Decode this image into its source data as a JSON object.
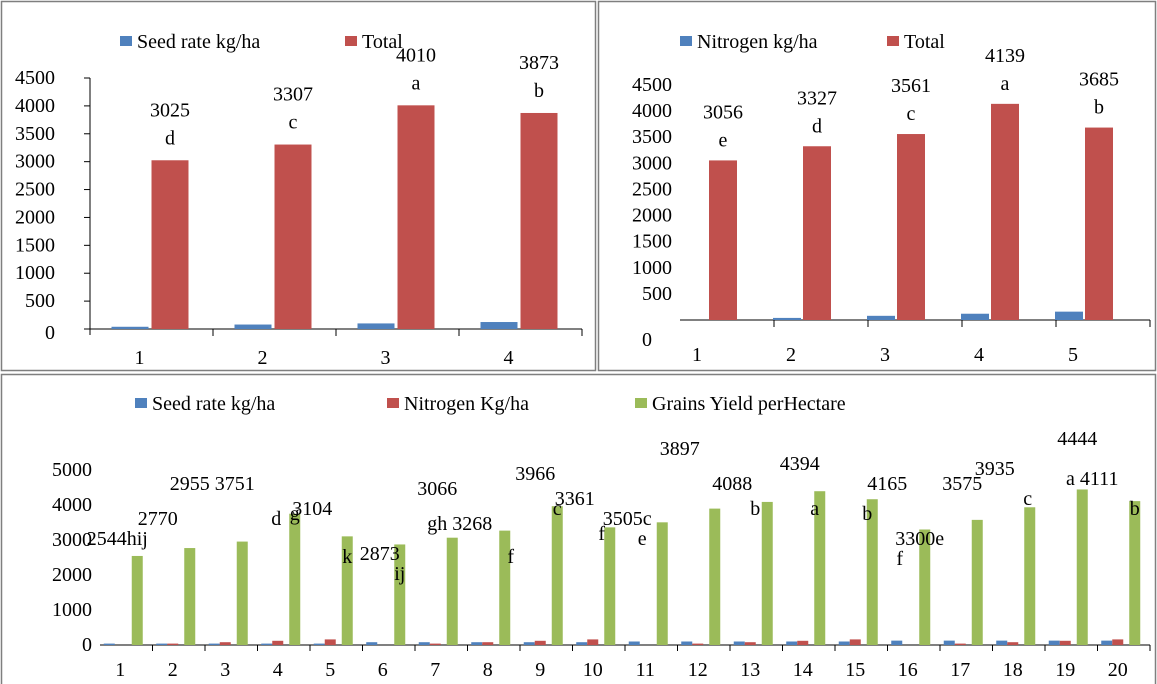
{
  "colors": {
    "blue": "#4F81BD",
    "red": "#C0504D",
    "green": "#9BBB59",
    "border": "#7f7f7f"
  },
  "chart_data": [
    {
      "type": "bar",
      "legend": [
        "Seed rate kg/ha",
        "Total"
      ],
      "legend_position": "top",
      "categories": [
        "1",
        "2",
        "3",
        "4"
      ],
      "series": [
        {
          "name": "Seed rate kg/ha",
          "values": [
            40,
            80,
            100,
            125
          ]
        },
        {
          "name": "Total",
          "values": [
            3025,
            3307,
            4010,
            3873
          ]
        }
      ],
      "value_labels": [
        "3025",
        "3307",
        "4010",
        "3873"
      ],
      "letters": [
        "d",
        "c",
        "a",
        "b"
      ],
      "yticks": [
        "0",
        "500",
        "1000",
        "1500",
        "2000",
        "2500",
        "3000",
        "3500",
        "4000",
        "4500"
      ],
      "ylim": [
        0,
        4500
      ],
      "grid": false
    },
    {
      "type": "bar",
      "legend": [
        "Nitrogen kg/ha",
        "Total"
      ],
      "legend_position": "top",
      "categories": [
        "1",
        "2",
        "3",
        "4",
        "5"
      ],
      "series": [
        {
          "name": "Nitrogen kg/ha",
          "values": [
            0,
            40,
            80,
            120,
            160
          ]
        },
        {
          "name": "Total",
          "values": [
            3056,
            3327,
            3561,
            4139,
            3685
          ]
        }
      ],
      "value_labels": [
        "3056",
        "3327",
        "3561",
        "4139",
        "3685"
      ],
      "letters": [
        "e",
        "d",
        "c",
        "a",
        "b"
      ],
      "yticks": [
        "500",
        "1000",
        "1500",
        "2000",
        "2500",
        "3000",
        "3500",
        "4000",
        "4500"
      ],
      "y_zero_label": "0",
      "ylim": [
        0,
        4500
      ],
      "grid": false
    },
    {
      "type": "bar",
      "legend": [
        "Seed rate kg/ha",
        "Nitrogen Kg/ha",
        "Grains Yield perHectare"
      ],
      "legend_position": "top",
      "categories": [
        "1",
        "2",
        "3",
        "4",
        "5",
        "6",
        "7",
        "8",
        "9",
        "10",
        "11",
        "12",
        "13",
        "14",
        "15",
        "16",
        "17",
        "18",
        "19",
        "20"
      ],
      "series": [
        {
          "name": "Seed rate kg/ha",
          "values": [
            40,
            40,
            40,
            40,
            40,
            80,
            80,
            80,
            80,
            80,
            100,
            100,
            100,
            100,
            100,
            125,
            125,
            125,
            125,
            125
          ]
        },
        {
          "name": "Nitrogen Kg/ha",
          "values": [
            0,
            40,
            80,
            120,
            160,
            0,
            40,
            80,
            120,
            160,
            0,
            40,
            80,
            120,
            160,
            0,
            40,
            80,
            120,
            160
          ]
        },
        {
          "name": "Grains Yield perHectare",
          "values": [
            2544,
            2770,
            2955,
            3751,
            3104,
            2873,
            3066,
            3268,
            3966,
            3361,
            3505,
            3897,
            4088,
            4394,
            4165,
            3300,
            3575,
            3935,
            4444,
            4111
          ]
        }
      ],
      "annotations": [
        {
          "text": "2544hij",
          "bar": 1,
          "dx": -20,
          "dy": -100
        },
        {
          "text": "2770",
          "bar": 2,
          "dx": -32,
          "dy": -120
        },
        {
          "text": "2955 3751",
          "bar": 3,
          "dx": -30,
          "dy": -155
        },
        {
          "text": "d",
          "bar": 3,
          "dx": 34,
          "dy": -120
        },
        {
          "text": "g",
          "bar": 4,
          "dx": 0,
          "dy": -125
        },
        {
          "text": "3104",
          "bar": 5,
          "dx": -35,
          "dy": -130
        },
        {
          "text": "k",
          "bar": 5,
          "dx": 0,
          "dy": -82
        },
        {
          "text": "2873",
          "bar": 6,
          "dx": -20,
          "dy": -85
        },
        {
          "text": "ij",
          "bar": 6,
          "dx": 0,
          "dy": -65
        },
        {
          "text": "3066",
          "bar": 7,
          "dx": -15,
          "dy": -150
        },
        {
          "text": "gh 3268",
          "bar": 8,
          "dx": -45,
          "dy": -115
        },
        {
          "text": "f",
          "bar": 8,
          "dx": 6,
          "dy": -82
        },
        {
          "text": "3966",
          "bar": 9,
          "dx": -22,
          "dy": -165
        },
        {
          "text": "c",
          "bar": 9,
          "dx": 0,
          "dy": -130
        },
        {
          "text": "3361",
          "bar": 10,
          "dx": -35,
          "dy": -140
        },
        {
          "text": "f",
          "bar": 10,
          "dx": -8,
          "dy": -105
        },
        {
          "text": "3505c",
          "bar": 11,
          "dx": -35,
          "dy": -120
        },
        {
          "text": "e",
          "bar": 11,
          "dx": -20,
          "dy": -100
        },
        {
          "text": "3897",
          "bar": 12,
          "dx": -35,
          "dy": -190
        },
        {
          "text": "4088",
          "bar": 13,
          "dx": -35,
          "dy": -155
        },
        {
          "text": "b",
          "bar": 13,
          "dx": -12,
          "dy": -130
        },
        {
          "text": "4394",
          "bar": 14,
          "dx": -20,
          "dy": -175
        },
        {
          "text": "a",
          "bar": 14,
          "dx": -5,
          "dy": -130
        },
        {
          "text": "4165",
          "bar": 15,
          "dx": 15,
          "dy": -155
        },
        {
          "text": "b",
          "bar": 15,
          "dx": -5,
          "dy": -125
        },
        {
          "text": "3300e",
          "bar": 16,
          "dx": -5,
          "dy": -100
        },
        {
          "text": "f",
          "bar": 16,
          "dx": -25,
          "dy": -80
        },
        {
          "text": "3575",
          "bar": 17,
          "dx": -15,
          "dy": -155
        },
        {
          "text": "3935",
          "bar": 18,
          "dx": -35,
          "dy": -170
        },
        {
          "text": "c",
          "bar": 18,
          "dx": -2,
          "dy": -140
        },
        {
          "text": "4444",
          "bar": 19,
          "dx": -5,
          "dy": -200
        },
        {
          "text": "a 4111",
          "bar": 19,
          "dx": 10,
          "dy": -160
        },
        {
          "text": "b",
          "bar": 20,
          "dx": 0,
          "dy": -130
        }
      ],
      "yticks": [
        "0",
        "1000",
        "2000",
        "3000",
        "4000",
        "5000"
      ],
      "ylim": [
        0,
        5000
      ],
      "grid": false
    }
  ]
}
